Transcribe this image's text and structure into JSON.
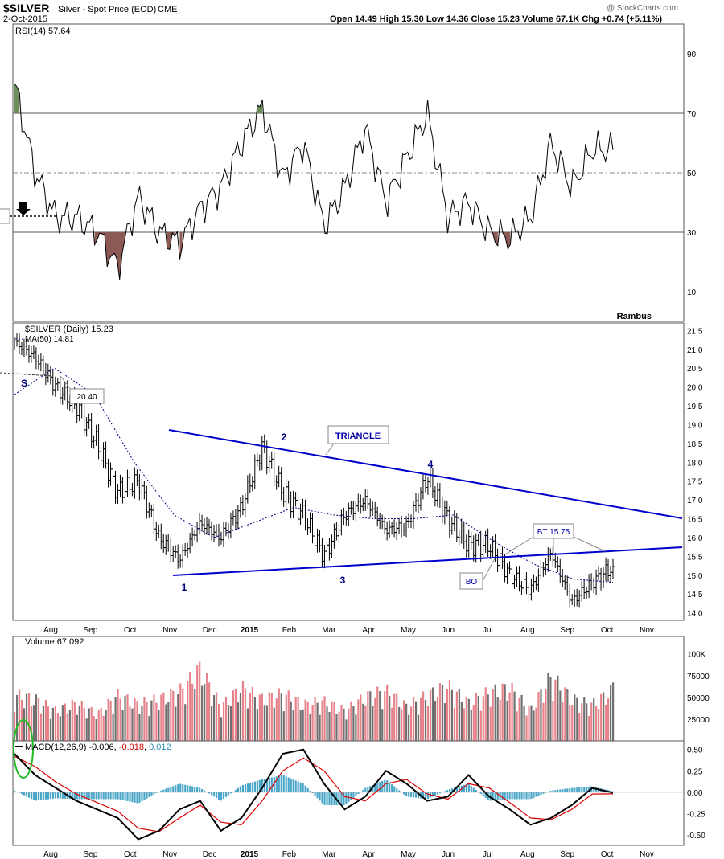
{
  "header": {
    "symbol": "$SILVER",
    "name": "Silver - Spot Price (EOD)",
    "exchange": "CME",
    "date": "2-Oct-2015",
    "ohlc_text": "Open 14.49  High 15.30  Low 14.36  Close 15.23  Volume 67.1K  Chg +0.74 (+5.11%)",
    "watermark": "@ StockCharts.com"
  },
  "colors": {
    "frame": "#555555",
    "price_bar": "#000000",
    "trendline": "#0000cc",
    "ma_line": "#000080",
    "rsi_overbought_fill": "#6b8e5a",
    "rsi_oversold_fill": "#8b5a55",
    "volume_up": "#e8828a",
    "volume_down": "#707070",
    "histogram": "#4aa6c8",
    "macd_line": "#000000",
    "signal_line": "#dd0000",
    "ellipse": "#22bb22",
    "annotation_arrow": "#999999"
  },
  "chart_data": [
    {
      "type": "line",
      "panel": "rsi",
      "title": "RSI(14) 57.64",
      "ylim": [
        0,
        100
      ],
      "y_ticks": [
        "90",
        "70",
        "50",
        "30",
        "10"
      ],
      "reference_lines": [
        70,
        50,
        30
      ],
      "annotation": "Rambus",
      "x": [
        "Jul",
        "Aug",
        "Aug",
        "Sep",
        "Sep",
        "Oct",
        "Oct",
        "Nov",
        "Nov",
        "Dec",
        "Dec",
        "Jan",
        "Jan",
        "Feb",
        "Feb",
        "Mar",
        "Mar",
        "Apr",
        "Apr",
        "May",
        "May",
        "Jun",
        "Jun",
        "Jul",
        "Jul",
        "Aug",
        "Aug",
        "Sep",
        "Sep",
        "Oct"
      ],
      "values": [
        80,
        50,
        35,
        35,
        30,
        18,
        42,
        30,
        26,
        38,
        45,
        60,
        72,
        48,
        60,
        32,
        45,
        65,
        40,
        55,
        70,
        35,
        40,
        30,
        28,
        35,
        60,
        45,
        58,
        57.64
      ]
    },
    {
      "type": "line",
      "panel": "price",
      "title": "$SILVER (Daily) 15.23",
      "legend": [
        "$SILVER (Daily) 15.23",
        "MA(50) 14.81"
      ],
      "ylim": [
        13.8,
        21.7
      ],
      "y_ticks": [
        "21.5",
        "21.0",
        "20.5",
        "20.0",
        "19.5",
        "19.0",
        "18.5",
        "18.0",
        "17.5",
        "17.0",
        "16.5",
        "16.0",
        "15.5",
        "15.0",
        "14.5",
        "14.0"
      ],
      "x_ticks": [
        "Aug",
        "Sep",
        "Oct",
        "Nov",
        "Dec",
        "2015",
        "Feb",
        "Mar",
        "Apr",
        "May",
        "Jun",
        "Jul",
        "Aug",
        "Sep",
        "Oct",
        "Nov"
      ],
      "series": [
        {
          "name": "$SILVER (Daily) 15.23",
          "x": [
            "Jul",
            "Aug",
            "Aug",
            "Sep",
            "Sep",
            "Oct",
            "Oct",
            "Nov",
            "Nov",
            "Dec",
            "Dec",
            "Jan",
            "Jan",
            "Feb",
            "Feb",
            "Mar",
            "Mar",
            "Apr",
            "Apr",
            "May",
            "May",
            "Jun",
            "Jun",
            "Jul",
            "Jul",
            "Aug",
            "Aug",
            "Sep",
            "Sep",
            "Oct"
          ],
          "values": [
            21.2,
            20.8,
            20.0,
            19.5,
            18.5,
            17.2,
            17.5,
            16.0,
            15.4,
            16.4,
            16.0,
            16.8,
            18.4,
            17.2,
            16.6,
            15.5,
            16.6,
            17.0,
            16.2,
            16.3,
            17.6,
            16.5,
            15.8,
            15.8,
            15.0,
            14.6,
            15.6,
            14.3,
            14.8,
            15.23
          ]
        },
        {
          "name": "MA(50) 14.81",
          "x": [
            "Jul",
            "Aug",
            "Sep",
            "Oct",
            "Nov",
            "Dec",
            "Jan",
            "Feb",
            "Mar",
            "Apr",
            "May",
            "Jun",
            "Jul",
            "Aug",
            "Sep",
            "Oct"
          ],
          "values": [
            19.8,
            20.5,
            19.8,
            18.0,
            16.6,
            16.0,
            16.4,
            16.8,
            16.6,
            16.5,
            16.5,
            16.6,
            15.9,
            15.3,
            14.9,
            14.81
          ]
        }
      ],
      "annotations": [
        "S",
        "20.40",
        "TRIANGLE",
        "1",
        "2",
        "3",
        "4",
        "BO",
        "BT 15.75"
      ],
      "trendlines": {
        "upper": {
          "from": 19.0,
          "to": 16.6
        },
        "lower": {
          "from": 15.05,
          "to": 15.8
        }
      }
    },
    {
      "type": "bar",
      "panel": "volume",
      "title": "Volume 67,092",
      "ylim": [
        0,
        120000
      ],
      "y_ticks": [
        "100K",
        "75000",
        "50000",
        "25000"
      ],
      "values": [
        60000,
        55000,
        40000,
        50000,
        35000,
        60000,
        48000,
        55000,
        65000,
        95000,
        45000,
        70000,
        55000,
        62000,
        48000,
        52000,
        40000,
        58000,
        66000,
        45000,
        60000,
        72000,
        50000,
        64000,
        70000,
        40000,
        85000,
        55000,
        48000,
        67092
      ]
    },
    {
      "type": "line",
      "panel": "macd",
      "title": "MACD(12,26,9) -0.006, -0.018, 0.012",
      "legend": [
        "MACD(12,26,9) -0.006",
        "-0.018",
        "0.012"
      ],
      "ylim": [
        -0.62,
        0.6
      ],
      "y_ticks": [
        "0.50",
        "0.25",
        "0.00",
        "-0.25",
        "-0.50"
      ],
      "series": [
        {
          "name": "MACD(12,26,9) -0.006",
          "values": [
            0.45,
            0.2,
            0.05,
            -0.1,
            -0.2,
            -0.3,
            -0.55,
            -0.45,
            -0.2,
            -0.1,
            -0.45,
            -0.3,
            0.05,
            0.45,
            0.5,
            0.1,
            -0.2,
            -0.05,
            0.25,
            0.1,
            -0.1,
            -0.05,
            0.2,
            -0.05,
            -0.2,
            -0.38,
            -0.3,
            -0.15,
            0.05,
            -0.006
          ]
        },
        {
          "name": "-0.018",
          "values": [
            0.42,
            0.3,
            0.12,
            -0.02,
            -0.12,
            -0.22,
            -0.42,
            -0.46,
            -0.3,
            -0.15,
            -0.35,
            -0.38,
            -0.1,
            0.25,
            0.4,
            0.25,
            -0.05,
            -0.1,
            0.1,
            0.15,
            -0.02,
            -0.08,
            0.1,
            0.05,
            -0.12,
            -0.3,
            -0.32,
            -0.2,
            -0.02,
            -0.018
          ]
        },
        {
          "name": "0.012",
          "values": [
            0.02,
            -0.1,
            -0.07,
            -0.08,
            -0.08,
            -0.08,
            -0.13,
            0.01,
            0.1,
            0.05,
            -0.1,
            0.08,
            0.15,
            0.2,
            0.1,
            -0.15,
            -0.15,
            0.05,
            0.15,
            -0.05,
            -0.08,
            0.03,
            0.1,
            -0.1,
            -0.08,
            -0.08,
            0.02,
            0.05,
            0.07,
            0.012
          ]
        }
      ]
    }
  ]
}
